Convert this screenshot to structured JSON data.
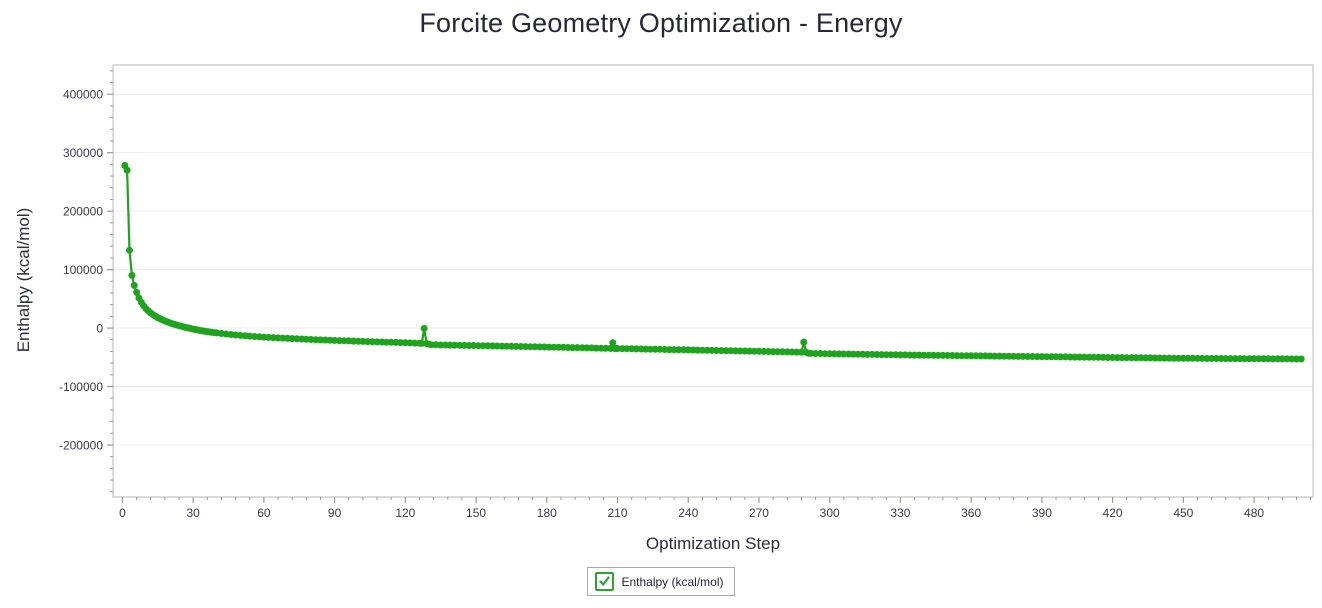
{
  "header": {
    "title": "Forcite Geometry Optimization - Energy"
  },
  "legend": {
    "items": [
      {
        "label": "Enthalpy (kcal/mol)",
        "checked": true
      }
    ]
  },
  "colors": {
    "series_green": "#1ea31e",
    "title_text": "#272739",
    "tick_text": "#3a3a4c",
    "frame": "#c5c5c5",
    "grid": "#ececec",
    "tick": "#9a9a9a",
    "checkbox_green": "#2ea52e"
  },
  "chart_data": {
    "type": "line",
    "title": "Forcite Geometry Optimization - Energy",
    "xlabel": "Optimization Step",
    "ylabel": "Enthalpy (kcal/mol)",
    "xlim": [
      -4,
      505
    ],
    "ylim": [
      -289000,
      450000
    ],
    "grid": "horizontal-only",
    "legend_position": "bottom-center",
    "x_ticks": {
      "majors": [
        0,
        30,
        60,
        90,
        120,
        150,
        180,
        210,
        240,
        270,
        300,
        330,
        360,
        390,
        420,
        450,
        480
      ],
      "minor_step": 6
    },
    "y_ticks": {
      "majors": [
        -200000,
        -100000,
        0,
        100000,
        200000,
        300000,
        400000
      ],
      "labels": [
        "-200000",
        "-100000",
        "0",
        "100000",
        "200000",
        "300000",
        "400000"
      ],
      "minor_step": 20000
    },
    "series": [
      {
        "name": "Enthalpy (kcal/mol)",
        "color": "#1ea31e",
        "marker": "circle",
        "points": [
          [
            1,
            278000
          ],
          [
            2,
            270000
          ],
          [
            3,
            133000
          ],
          [
            4,
            90000
          ],
          [
            5,
            73000
          ],
          [
            6,
            61000
          ],
          [
            7,
            51500
          ],
          [
            8,
            44000
          ],
          [
            9,
            38000
          ],
          [
            10,
            33200
          ],
          [
            11,
            29200
          ],
          [
            12,
            25800
          ],
          [
            13,
            22800
          ],
          [
            14,
            20200
          ],
          [
            15,
            17900
          ],
          [
            16,
            15800
          ],
          [
            17,
            13900
          ],
          [
            18,
            12200
          ],
          [
            19,
            10600
          ],
          [
            20,
            9100
          ],
          [
            21,
            7700
          ],
          [
            22,
            6400
          ],
          [
            23,
            5200
          ],
          [
            24,
            4100
          ],
          [
            25,
            3000
          ],
          [
            26,
            2000
          ],
          [
            27,
            1000
          ],
          [
            28,
            100
          ],
          [
            29,
            -800
          ],
          [
            30,
            -1700
          ],
          [
            31,
            -2500
          ],
          [
            32,
            -3300
          ],
          [
            33,
            -4100
          ],
          [
            34,
            -4800
          ],
          [
            35,
            -5500
          ],
          [
            36,
            -6100
          ],
          [
            37,
            -6700
          ],
          [
            38,
            -7300
          ],
          [
            39,
            -7800
          ],
          [
            40,
            -8300
          ],
          [
            42,
            -9300
          ],
          [
            44,
            -10200
          ],
          [
            46,
            -11000
          ],
          [
            48,
            -11800
          ],
          [
            50,
            -12500
          ],
          [
            52,
            -13200
          ],
          [
            54,
            -13800
          ],
          [
            56,
            -14400
          ],
          [
            58,
            -15000
          ],
          [
            60,
            -15500
          ],
          [
            62,
            -15900
          ],
          [
            64,
            -16400
          ],
          [
            66,
            -16800
          ],
          [
            68,
            -17200
          ],
          [
            70,
            -17600
          ],
          [
            72,
            -18000
          ],
          [
            74,
            -18400
          ],
          [
            76,
            -18800
          ],
          [
            78,
            -19200
          ],
          [
            80,
            -19500
          ],
          [
            82,
            -19900
          ],
          [
            84,
            -20200
          ],
          [
            86,
            -20500
          ],
          [
            88,
            -20800
          ],
          [
            90,
            -21100
          ],
          [
            92,
            -21400
          ],
          [
            94,
            -21700
          ],
          [
            96,
            -22000
          ],
          [
            98,
            -22300
          ],
          [
            100,
            -22600
          ],
          [
            102,
            -22900
          ],
          [
            104,
            -23200
          ],
          [
            106,
            -23400
          ],
          [
            108,
            -23700
          ],
          [
            110,
            -23900
          ],
          [
            112,
            -24200
          ],
          [
            114,
            -24400
          ],
          [
            116,
            -24600
          ],
          [
            118,
            -24900
          ],
          [
            120,
            -25100
          ],
          [
            122,
            -25400
          ],
          [
            124,
            -25700
          ],
          [
            126,
            -26000
          ],
          [
            127,
            -26200
          ],
          [
            128,
            -500
          ],
          [
            129,
            -26400
          ],
          [
            130,
            -27600
          ],
          [
            131,
            -28500
          ],
          [
            133,
            -28700
          ],
          [
            135,
            -28900
          ],
          [
            137,
            -29000
          ],
          [
            139,
            -29200
          ],
          [
            141,
            -29300
          ],
          [
            143,
            -29500
          ],
          [
            145,
            -29600
          ],
          [
            147,
            -29800
          ],
          [
            149,
            -29900
          ],
          [
            151,
            -30100
          ],
          [
            153,
            -30200
          ],
          [
            155,
            -30400
          ],
          [
            157,
            -30600
          ],
          [
            159,
            -30700
          ],
          [
            161,
            -30900
          ],
          [
            163,
            -31000
          ],
          [
            165,
            -31200
          ],
          [
            167,
            -31400
          ],
          [
            169,
            -31500
          ],
          [
            171,
            -31700
          ],
          [
            173,
            -31900
          ],
          [
            175,
            -32000
          ],
          [
            177,
            -32200
          ],
          [
            179,
            -32400
          ],
          [
            181,
            -32500
          ],
          [
            183,
            -32700
          ],
          [
            185,
            -32900
          ],
          [
            187,
            -33000
          ],
          [
            189,
            -33200
          ],
          [
            191,
            -33400
          ],
          [
            193,
            -33500
          ],
          [
            195,
            -33700
          ],
          [
            197,
            -33900
          ],
          [
            199,
            -34000
          ],
          [
            201,
            -34200
          ],
          [
            203,
            -34400
          ],
          [
            205,
            -34600
          ],
          [
            207,
            -34800
          ],
          [
            208,
            -25000
          ],
          [
            209,
            -34900
          ],
          [
            210,
            -35000
          ],
          [
            212,
            -35200
          ],
          [
            214,
            -35300
          ],
          [
            216,
            -35500
          ],
          [
            218,
            -35600
          ],
          [
            220,
            -35800
          ],
          [
            222,
            -36000
          ],
          [
            224,
            -36100
          ],
          [
            226,
            -36300
          ],
          [
            228,
            -36400
          ],
          [
            230,
            -36600
          ],
          [
            232,
            -36800
          ],
          [
            234,
            -36900
          ],
          [
            236,
            -37100
          ],
          [
            238,
            -37200
          ],
          [
            240,
            -37400
          ],
          [
            242,
            -37600
          ],
          [
            244,
            -37700
          ],
          [
            246,
            -37900
          ],
          [
            248,
            -38000
          ],
          [
            250,
            -38200
          ],
          [
            252,
            -38400
          ],
          [
            254,
            -38500
          ],
          [
            256,
            -38700
          ],
          [
            258,
            -38800
          ],
          [
            260,
            -39000
          ],
          [
            262,
            -39200
          ],
          [
            264,
            -39300
          ],
          [
            266,
            -39500
          ],
          [
            268,
            -39600
          ],
          [
            270,
            -39800
          ],
          [
            272,
            -40000
          ],
          [
            274,
            -40100
          ],
          [
            276,
            -40300
          ],
          [
            278,
            -40400
          ],
          [
            280,
            -40600
          ],
          [
            282,
            -40800
          ],
          [
            284,
            -40900
          ],
          [
            286,
            -41100
          ],
          [
            288,
            -41200
          ],
          [
            289,
            -24000
          ],
          [
            290,
            -41400
          ],
          [
            291,
            -43100
          ],
          [
            292,
            -43300
          ],
          [
            294,
            -43500
          ],
          [
            296,
            -43600
          ],
          [
            298,
            -43800
          ],
          [
            300,
            -43900
          ],
          [
            302,
            -44000
          ],
          [
            304,
            -44200
          ],
          [
            306,
            -44300
          ],
          [
            308,
            -44400
          ],
          [
            310,
            -44600
          ],
          [
            312,
            -44700
          ],
          [
            314,
            -44800
          ],
          [
            316,
            -45000
          ],
          [
            318,
            -45100
          ],
          [
            320,
            -45200
          ],
          [
            322,
            -45400
          ],
          [
            324,
            -45500
          ],
          [
            326,
            -45600
          ],
          [
            328,
            -45800
          ],
          [
            330,
            -45900
          ],
          [
            332,
            -46000
          ],
          [
            334,
            -46100
          ],
          [
            336,
            -46200
          ],
          [
            338,
            -46300
          ],
          [
            340,
            -46400
          ],
          [
            342,
            -46500
          ],
          [
            344,
            -46600
          ],
          [
            346,
            -46700
          ],
          [
            348,
            -46800
          ],
          [
            350,
            -46900
          ],
          [
            352,
            -47000
          ],
          [
            354,
            -47100
          ],
          [
            356,
            -47200
          ],
          [
            358,
            -47300
          ],
          [
            360,
            -47400
          ],
          [
            362,
            -47500
          ],
          [
            364,
            -47600
          ],
          [
            366,
            -47700
          ],
          [
            368,
            -47800
          ],
          [
            370,
            -47900
          ],
          [
            372,
            -48000
          ],
          [
            374,
            -48100
          ],
          [
            376,
            -48200
          ],
          [
            378,
            -48300
          ],
          [
            380,
            -48400
          ],
          [
            382,
            -48500
          ],
          [
            384,
            -48600
          ],
          [
            386,
            -48700
          ],
          [
            388,
            -48800
          ],
          [
            390,
            -48900
          ],
          [
            392,
            -49000
          ],
          [
            394,
            -49100
          ],
          [
            396,
            -49200
          ],
          [
            398,
            -49300
          ],
          [
            400,
            -49400
          ],
          [
            402,
            -49500
          ],
          [
            404,
            -49600
          ],
          [
            406,
            -49700
          ],
          [
            408,
            -49800
          ],
          [
            410,
            -49900
          ],
          [
            412,
            -50000
          ],
          [
            414,
            -50100
          ],
          [
            416,
            -50200
          ],
          [
            418,
            -50300
          ],
          [
            420,
            -50400
          ],
          [
            422,
            -50500
          ],
          [
            424,
            -50600
          ],
          [
            426,
            -50700
          ],
          [
            428,
            -50700
          ],
          [
            430,
            -50800
          ],
          [
            432,
            -50900
          ],
          [
            434,
            -51000
          ],
          [
            436,
            -51100
          ],
          [
            438,
            -51200
          ],
          [
            440,
            -51300
          ],
          [
            442,
            -51400
          ],
          [
            444,
            -51400
          ],
          [
            446,
            -51500
          ],
          [
            448,
            -51600
          ],
          [
            450,
            -51700
          ],
          [
            452,
            -51700
          ],
          [
            454,
            -51800
          ],
          [
            456,
            -51900
          ],
          [
            458,
            -51900
          ],
          [
            460,
            -52000
          ],
          [
            462,
            -52000
          ],
          [
            464,
            -52100
          ],
          [
            466,
            -52100
          ],
          [
            468,
            -52200
          ],
          [
            470,
            -52200
          ],
          [
            472,
            -52300
          ],
          [
            474,
            -52300
          ],
          [
            476,
            -52400
          ],
          [
            478,
            -52400
          ],
          [
            480,
            -52500
          ],
          [
            482,
            -52500
          ],
          [
            484,
            -52600
          ],
          [
            486,
            -52600
          ],
          [
            488,
            -52700
          ],
          [
            490,
            -52700
          ],
          [
            492,
            -52750
          ],
          [
            494,
            -52800
          ],
          [
            496,
            -52800
          ],
          [
            498,
            -52850
          ],
          [
            500,
            -52900
          ]
        ]
      }
    ]
  }
}
